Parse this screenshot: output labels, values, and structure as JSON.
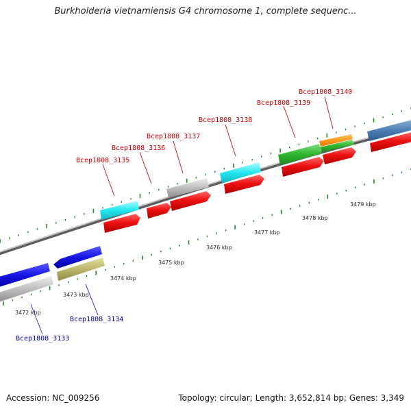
{
  "title": "Burkholderia vietnamiensis G4 chromosome 1, complete sequenc...",
  "footer": {
    "accession": "Accession: NC_009256",
    "summary": "Topology: circular; Length: 3,652,814 bp; Genes: 3,349"
  },
  "colors": {
    "forward_label": "#cc0000",
    "reverse_label": "#0000aa",
    "tick": "#1a8a1a",
    "backbone": "#888888"
  },
  "scale": {
    "labels": [
      "3472 kbp",
      "3473 kbp",
      "3474 kbp",
      "3475 kbp",
      "3476 kbp",
      "3477 kbp",
      "3478 kbp",
      "3479 kbp"
    ]
  },
  "genes": [
    {
      "id": "Bcep1808_3133",
      "label": "Bcep1808_3133",
      "strand": "reverse",
      "labeled": true
    },
    {
      "id": "Bcep1808_3134",
      "label": "Bcep1808_3134",
      "strand": "reverse",
      "labeled": true
    },
    {
      "id": "Bcep1808_3135",
      "label": "Bcep1808_3135",
      "strand": "forward",
      "labeled": true
    },
    {
      "id": "Bcep1808_3136",
      "label": "Bcep1808_3136",
      "strand": "forward",
      "labeled": true
    },
    {
      "id": "Bcep1808_3137",
      "label": "Bcep1808_3137",
      "strand": "forward",
      "labeled": true
    },
    {
      "id": "Bcep1808_3138",
      "label": "Bcep1808_3138",
      "strand": "forward",
      "labeled": true
    },
    {
      "id": "Bcep1808_3139",
      "label": "Bcep1808_3139",
      "strand": "forward",
      "labeled": true
    },
    {
      "id": "Bcep1808_3140",
      "label": "Bcep1808_3140",
      "strand": "forward",
      "labeled": true
    }
  ]
}
